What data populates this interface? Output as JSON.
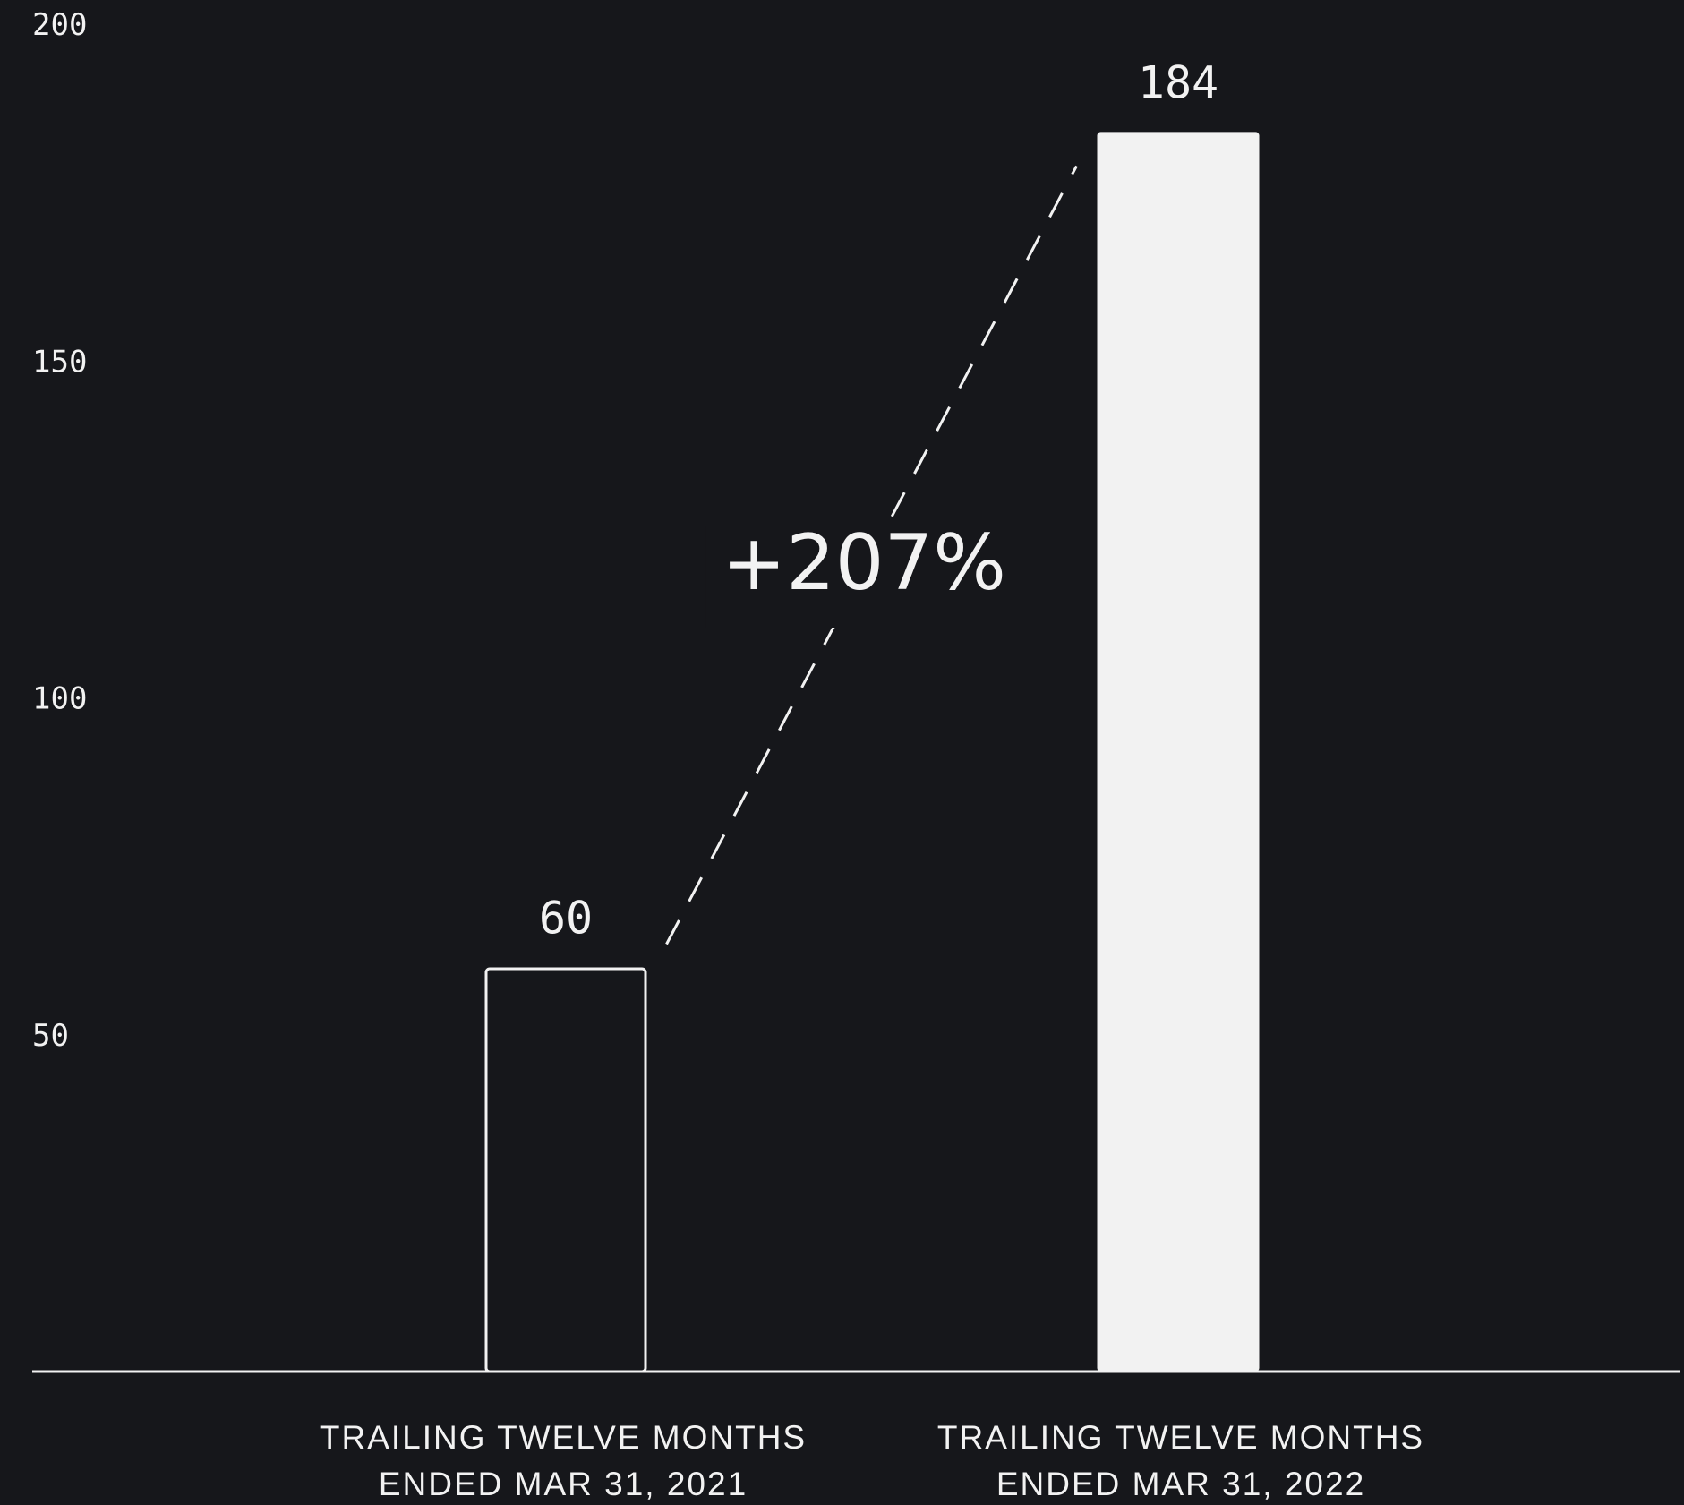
{
  "chart_data": {
    "type": "bar",
    "categories": [
      [
        "TRAILING TWELVE MONTHS",
        "ENDED MAR 31, 2021"
      ],
      [
        "TRAILING TWELVE MONTHS",
        "ENDED MAR 31, 2022"
      ]
    ],
    "values": [
      60,
      184
    ],
    "value_labels": [
      "60",
      "184"
    ],
    "yticks": [
      "50",
      "100",
      "150",
      "200"
    ],
    "ylim": [
      0,
      200
    ],
    "annotation": "+207%",
    "bar_styles": [
      "outline",
      "filled"
    ],
    "colors": {
      "background": "#16171b",
      "foreground": "#f2f2f2"
    },
    "grid": false,
    "title": "",
    "xlabel": "",
    "ylabel": ""
  }
}
